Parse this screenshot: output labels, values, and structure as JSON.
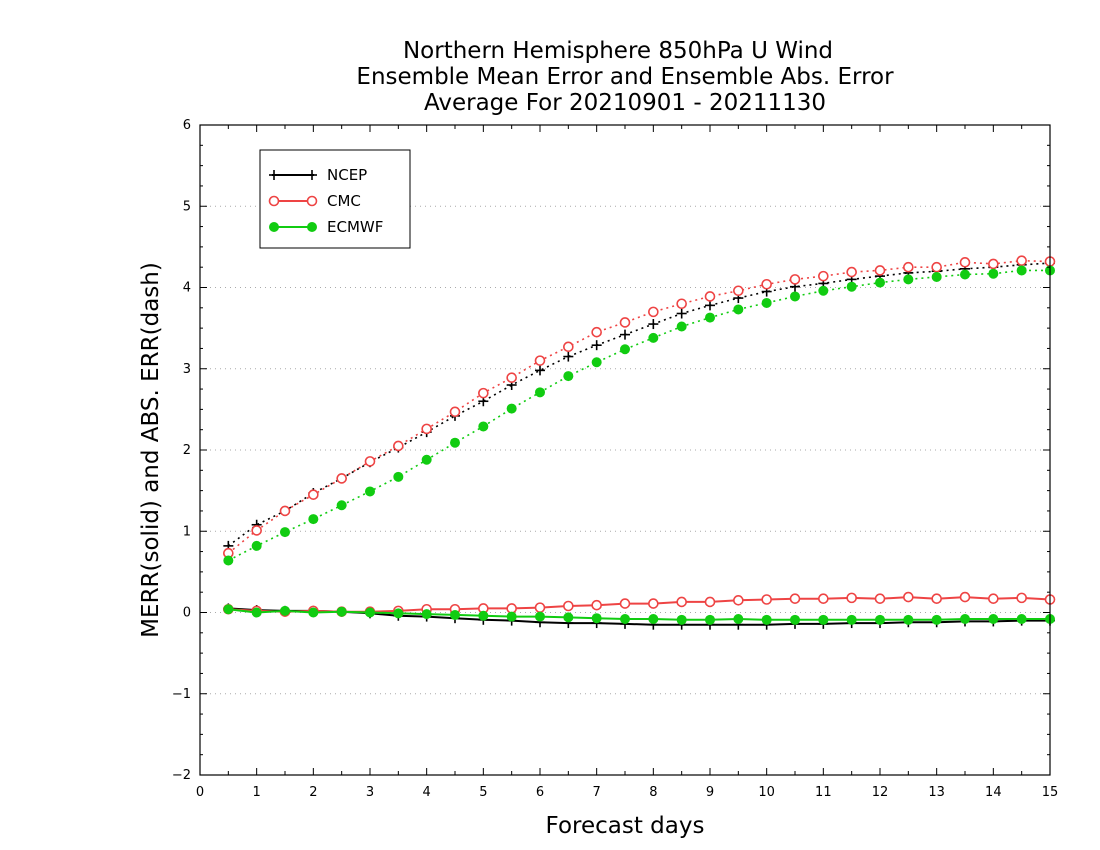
{
  "chart_data": {
    "type": "line",
    "title_lines": [
      "Northern Hemisphere 850hPa U Wind",
      "Ensemble Mean Error and Ensemble Abs. Error",
      "Average For 20210901 - 20211130"
    ],
    "xlabel": "Forecast days",
    "ylabel": "MERR(solid) and ABS. ERR(dash)",
    "xlim": [
      0,
      15
    ],
    "ylim": [
      -2,
      6
    ],
    "xticks": [
      "0",
      "1",
      "2",
      "3",
      "4",
      "5",
      "6",
      "7",
      "8",
      "9",
      "10",
      "11",
      "12",
      "13",
      "14",
      "15"
    ],
    "yticks": [
      "−2",
      "−1",
      "0",
      "1",
      "2",
      "3",
      "4",
      "5",
      "6"
    ],
    "grid": "horizontal dotted",
    "legend_position": "top-left",
    "x": [
      0.5,
      1,
      1.5,
      2,
      2.5,
      3,
      3.5,
      4,
      4.5,
      5,
      5.5,
      6,
      6.5,
      7,
      7.5,
      8,
      8.5,
      9,
      9.5,
      10,
      10.5,
      11,
      11.5,
      12,
      12.5,
      13,
      13.5,
      14,
      14.5,
      15
    ],
    "series": [
      {
        "name": "NCEP",
        "color": "#000000",
        "marker": "plus",
        "abs_err": [
          0.82,
          1.08,
          1.25,
          1.47,
          1.65,
          1.85,
          2.03,
          2.22,
          2.42,
          2.6,
          2.8,
          2.98,
          3.15,
          3.29,
          3.42,
          3.55,
          3.68,
          3.78,
          3.87,
          3.95,
          4.01,
          4.05,
          4.1,
          4.14,
          4.18,
          4.2,
          4.23,
          4.25,
          4.28,
          4.3
        ],
        "mean_err": [
          0.05,
          0.03,
          0.02,
          0.02,
          0.01,
          -0.01,
          -0.04,
          -0.05,
          -0.07,
          -0.09,
          -0.1,
          -0.12,
          -0.13,
          -0.13,
          -0.14,
          -0.15,
          -0.15,
          -0.15,
          -0.15,
          -0.15,
          -0.14,
          -0.14,
          -0.13,
          -0.13,
          -0.12,
          -0.12,
          -0.11,
          -0.11,
          -0.1,
          -0.1
        ]
      },
      {
        "name": "CMC",
        "color": "#ee4444",
        "marker": "open-circle",
        "abs_err": [
          0.73,
          1.01,
          1.25,
          1.45,
          1.65,
          1.86,
          2.05,
          2.26,
          2.47,
          2.7,
          2.89,
          3.1,
          3.27,
          3.45,
          3.57,
          3.7,
          3.8,
          3.89,
          3.96,
          4.04,
          4.1,
          4.14,
          4.19,
          4.21,
          4.25,
          4.25,
          4.31,
          4.29,
          4.33,
          4.32
        ],
        "mean_err": [
          0.04,
          0.02,
          0.01,
          0.02,
          0.01,
          0.01,
          0.02,
          0.04,
          0.04,
          0.05,
          0.05,
          0.06,
          0.08,
          0.09,
          0.11,
          0.11,
          0.13,
          0.13,
          0.15,
          0.16,
          0.17,
          0.17,
          0.18,
          0.17,
          0.19,
          0.17,
          0.19,
          0.17,
          0.18,
          0.16
        ]
      },
      {
        "name": "ECMWF",
        "color": "#11cc11",
        "marker": "filled-circle",
        "abs_err": [
          0.64,
          0.82,
          0.99,
          1.15,
          1.32,
          1.49,
          1.67,
          1.88,
          2.09,
          2.29,
          2.51,
          2.71,
          2.91,
          3.08,
          3.24,
          3.38,
          3.52,
          3.63,
          3.73,
          3.81,
          3.89,
          3.96,
          4.01,
          4.06,
          4.1,
          4.13,
          4.16,
          4.17,
          4.21,
          4.21
        ],
        "mean_err": [
          0.04,
          0.0,
          0.02,
          0.0,
          0.01,
          0.0,
          -0.01,
          -0.02,
          -0.03,
          -0.04,
          -0.05,
          -0.05,
          -0.06,
          -0.07,
          -0.08,
          -0.08,
          -0.09,
          -0.09,
          -0.08,
          -0.09,
          -0.09,
          -0.09,
          -0.09,
          -0.09,
          -0.09,
          -0.09,
          -0.08,
          -0.08,
          -0.08,
          -0.08
        ]
      }
    ]
  }
}
